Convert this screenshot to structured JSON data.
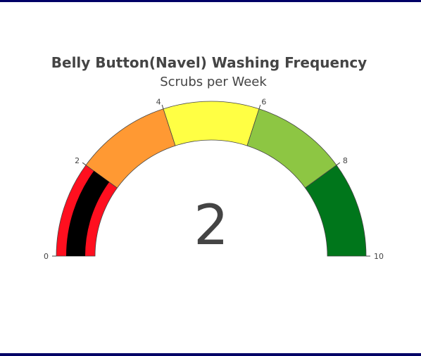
{
  "chart_data": {
    "type": "gauge",
    "title": "Belly Button(Navel) Washing Frequency",
    "subtitle": "Scrubs per Week",
    "value": 2,
    "value_label": "2",
    "range": [
      0,
      10
    ],
    "ticks": [
      {
        "value": 0,
        "label": "0"
      },
      {
        "value": 2,
        "label": "2"
      },
      {
        "value": 4,
        "label": "4"
      },
      {
        "value": 6,
        "label": "6"
      },
      {
        "value": 8,
        "label": "8"
      },
      {
        "value": 10,
        "label": "10"
      }
    ],
    "steps": [
      {
        "range": [
          0,
          2
        ],
        "color": "#ff0f1f"
      },
      {
        "range": [
          2,
          4
        ],
        "color": "#ff9933"
      },
      {
        "range": [
          4,
          6
        ],
        "color": "#ffff44"
      },
      {
        "range": [
          6,
          8
        ],
        "color": "#8dc643"
      },
      {
        "range": [
          8,
          10
        ],
        "color": "#00761b"
      }
    ],
    "bar_color": "#000000",
    "border_color": "#444444",
    "text_color": "#444444"
  }
}
